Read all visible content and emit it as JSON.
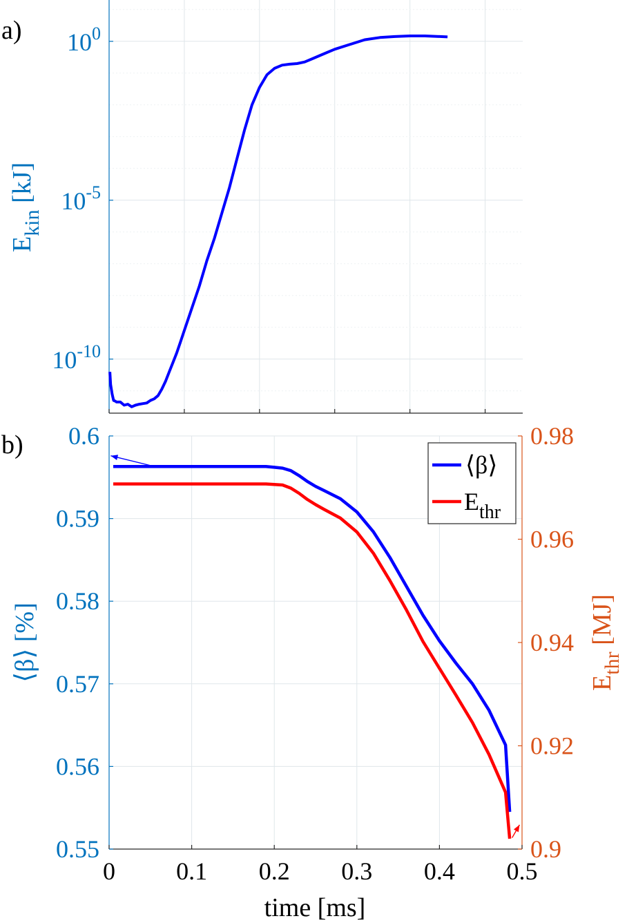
{
  "chart_data": [
    {
      "panel": "a)",
      "type": "line",
      "ylabel_main": "E",
      "ylabel_sub": "kin",
      "ylabel_unit": " [kJ]",
      "yscale": "log",
      "ylim_exp": [
        -11.7,
        1.3
      ],
      "xlim": [
        0,
        0.55
      ],
      "yticks": [
        {
          "exp": 0,
          "base": "10",
          "sup": "0"
        },
        {
          "exp": -5,
          "base": "10",
          "sup": "-5"
        },
        {
          "exp": -10,
          "base": "10",
          "sup": "-10"
        }
      ],
      "grid": true,
      "series": [
        {
          "color": "#0000ff",
          "x": [
            0.001,
            0.002,
            0.004,
            0.006,
            0.008,
            0.01,
            0.015,
            0.02,
            0.025,
            0.03,
            0.035,
            0.04,
            0.045,
            0.05,
            0.055,
            0.06,
            0.065,
            0.07,
            0.075,
            0.08,
            0.085,
            0.09,
            0.095,
            0.1,
            0.11,
            0.12,
            0.13,
            0.14,
            0.15,
            0.16,
            0.17,
            0.18,
            0.19,
            0.2,
            0.21,
            0.22,
            0.23,
            0.24,
            0.25,
            0.26,
            0.27,
            0.28,
            0.29,
            0.3,
            0.32,
            0.34,
            0.36,
            0.38,
            0.4,
            0.42,
            0.44,
            0.45
          ],
          "y_exp": [
            -10.4,
            -10.8,
            -11.1,
            -11.3,
            -11.32,
            -11.35,
            -11.35,
            -11.45,
            -11.42,
            -11.5,
            -11.45,
            -11.42,
            -11.4,
            -11.38,
            -11.3,
            -11.25,
            -11.15,
            -10.95,
            -10.7,
            -10.4,
            -10.1,
            -9.8,
            -9.45,
            -9.1,
            -8.4,
            -7.7,
            -6.9,
            -6.2,
            -5.4,
            -4.6,
            -3.7,
            -2.8,
            -2.0,
            -1.45,
            -1.05,
            -0.85,
            -0.75,
            -0.72,
            -0.7,
            -0.65,
            -0.55,
            -0.45,
            -0.35,
            -0.25,
            -0.1,
            0.05,
            0.12,
            0.15,
            0.17,
            0.17,
            0.15,
            0.14
          ]
        }
      ]
    },
    {
      "panel": "b)",
      "type": "line",
      "xlabel": "time [ms]",
      "xlim": [
        0,
        0.5
      ],
      "xticks": [
        "0",
        "0.1",
        "0.2",
        "0.3",
        "0.4",
        "0.5"
      ],
      "ylabel_left": "⟨β⟩ [%]",
      "ylim_left": [
        0.55,
        0.6
      ],
      "yticks_left": [
        "0.6",
        "0.59",
        "0.58",
        "0.57",
        "0.56",
        "0.55"
      ],
      "ylabel_right_main": "E",
      "ylabel_right_sub": "thr",
      "ylabel_right_unit": " [MJ]",
      "ylim_right": [
        0.9,
        0.98
      ],
      "yticks_right": [
        "0.98",
        "0.96",
        "0.94",
        "0.92",
        "0.9"
      ],
      "grid": true,
      "legend": {
        "placement": "top-right",
        "beta_label": "⟨β⟩",
        "ethr_main": "E",
        "ethr_sub": "thr"
      },
      "series": [
        {
          "axis": "left",
          "color": "#0000ff",
          "x": [
            0.005,
            0.05,
            0.1,
            0.15,
            0.19,
            0.2,
            0.21,
            0.22,
            0.23,
            0.24,
            0.25,
            0.26,
            0.28,
            0.3,
            0.32,
            0.34,
            0.36,
            0.38,
            0.4,
            0.42,
            0.44,
            0.46,
            0.48,
            0.485
          ],
          "y": [
            0.5963,
            0.5963,
            0.5963,
            0.5963,
            0.5963,
            0.5962,
            0.5961,
            0.5958,
            0.5952,
            0.5945,
            0.5939,
            0.5934,
            0.5924,
            0.5908,
            0.5884,
            0.5853,
            0.5818,
            0.5783,
            0.5752,
            0.5725,
            0.57,
            0.5668,
            0.5626,
            0.5545
          ]
        },
        {
          "axis": "right",
          "color": "#ff0000",
          "x": [
            0.005,
            0.05,
            0.1,
            0.15,
            0.19,
            0.2,
            0.21,
            0.22,
            0.23,
            0.24,
            0.25,
            0.26,
            0.28,
            0.3,
            0.32,
            0.34,
            0.36,
            0.38,
            0.4,
            0.42,
            0.44,
            0.46,
            0.48,
            0.485
          ],
          "y": [
            0.9707,
            0.9707,
            0.9707,
            0.9707,
            0.9707,
            0.9706,
            0.9705,
            0.9699,
            0.9689,
            0.9677,
            0.9667,
            0.9658,
            0.9641,
            0.9614,
            0.9573,
            0.952,
            0.9463,
            0.9402,
            0.935,
            0.9298,
            0.9245,
            0.9183,
            0.911,
            0.902
          ]
        }
      ],
      "annotations": [
        {
          "axis": "left",
          "from": [
            0.055,
            0.5963
          ],
          "to": [
            0.002,
            0.5976
          ],
          "color": "#0000ff"
        },
        {
          "axis": "right",
          "from": [
            0.488,
            0.9022
          ],
          "to": [
            0.497,
            0.9047
          ],
          "color": "#ff0000"
        }
      ]
    }
  ]
}
